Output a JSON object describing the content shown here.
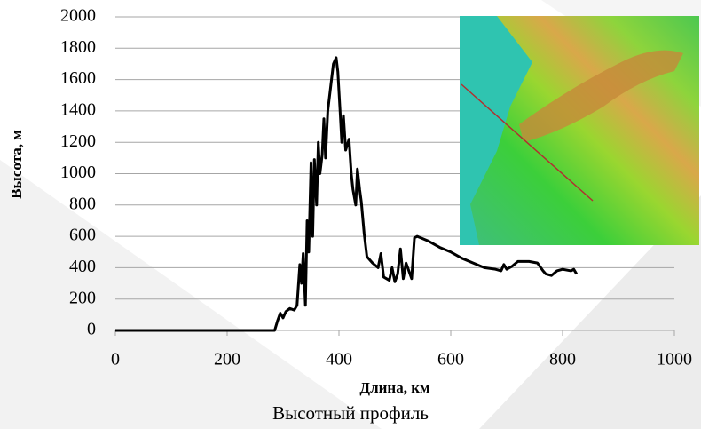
{
  "chart_data": {
    "type": "line",
    "xlabel": "Длина, км",
    "ylabel": "Высота, м",
    "caption": "Высотный профиль",
    "x": [
      0,
      285,
      290,
      295,
      300,
      305,
      312,
      320,
      325,
      330,
      333,
      336,
      340,
      343,
      346,
      350,
      353,
      356,
      360,
      363,
      366,
      370,
      373,
      376,
      380,
      385,
      390,
      395,
      398,
      402,
      405,
      408,
      412,
      418,
      422,
      425,
      430,
      433,
      437,
      440,
      445,
      450,
      460,
      470,
      475,
      480,
      490,
      495,
      500,
      505,
      510,
      515,
      520,
      525,
      530,
      535,
      540,
      560,
      580,
      600,
      620,
      640,
      660,
      680,
      690,
      695,
      700,
      710,
      720,
      740,
      755,
      765,
      770,
      780,
      790,
      800,
      815,
      820,
      825
    ],
    "series": [
      {
        "color": "#000000",
        "values": [
          0,
          0,
          60,
          110,
          80,
          120,
          140,
          130,
          160,
          420,
          300,
          490,
          160,
          700,
          500,
          1070,
          600,
          1090,
          800,
          1200,
          1000,
          1120,
          1350,
          1100,
          1400,
          1550,
          1700,
          1740,
          1650,
          1400,
          1200,
          1370,
          1150,
          1220,
          1000,
          900,
          800,
          1030,
          900,
          820,
          620,
          470,
          430,
          400,
          490,
          340,
          320,
          400,
          310,
          360,
          520,
          330,
          430,
          380,
          330,
          590,
          600,
          570,
          530,
          500,
          460,
          430,
          400,
          390,
          380,
          420,
          390,
          410,
          440,
          440,
          430,
          380,
          360,
          350,
          380,
          390,
          380,
          390,
          360
        ]
      }
    ],
    "xlim": [
      0,
      1000
    ],
    "xticks": [
      0,
      200,
      400,
      600,
      800,
      1000
    ],
    "ylim": [
      0,
      2000
    ],
    "yticks": [
      0,
      200,
      400,
      600,
      800,
      1000,
      1200,
      1400,
      1600,
      1800,
      2000
    ],
    "grid": true
  }
}
